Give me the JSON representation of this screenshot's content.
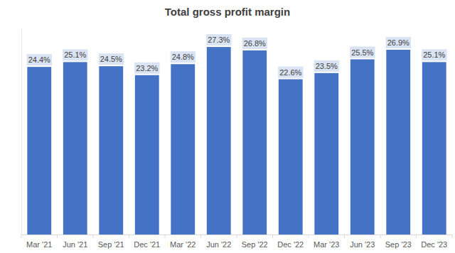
{
  "chart_data": {
    "type": "bar",
    "title": "Total gross profit margin",
    "categories": [
      "Mar '21",
      "Jun '21",
      "Sep '21",
      "Dec '21",
      "Mar '22",
      "Jun '22",
      "Sep '22",
      "Dec '22",
      "Mar '23",
      "Jun '23",
      "Sep '23",
      "Dec '23"
    ],
    "values": [
      24.4,
      25.1,
      24.5,
      23.2,
      24.8,
      27.3,
      26.8,
      22.6,
      23.5,
      25.5,
      26.9,
      25.1
    ],
    "value_labels": [
      "24.4%",
      "25.1%",
      "24.5%",
      "23.2%",
      "24.8%",
      "27.3%",
      "26.8%",
      "22.6%",
      "23.5%",
      "25.5%",
      "26.9%",
      "25.1%"
    ],
    "color": "#4472c4",
    "ylim": [
      0,
      30
    ],
    "data_labels": true,
    "tick_labels": "x",
    "grid": false
  }
}
